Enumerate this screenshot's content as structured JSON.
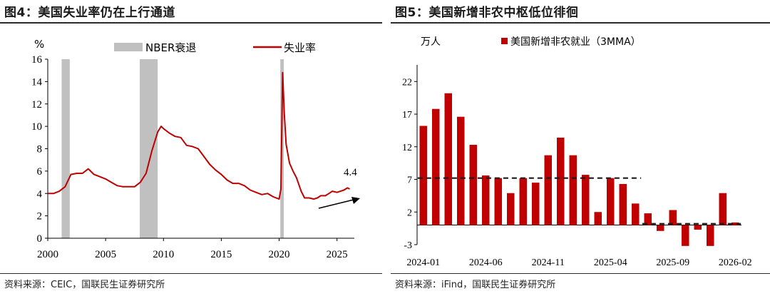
{
  "left": {
    "title": "图4：美国失业率仍在上行通道",
    "source": "资料来源：CEIC，国联民生证券研究所"
  },
  "right": {
    "title": "图5：美国新增非农中枢低位徘徊",
    "source": "资料来源：iFind，国联民生证券研究所"
  },
  "colors": {
    "series": "#c00000",
    "recession": "#c0c0c0",
    "axis": "#000000",
    "avgline": "#1a1a1a"
  },
  "chart_data": [
    {
      "type": "line",
      "ylabel": "%",
      "ylim": [
        0,
        16
      ],
      "yticks": [
        "0",
        "2",
        "4",
        "6",
        "8",
        "10",
        "12",
        "14",
        "16"
      ],
      "xlim": [
        2000,
        2026.5
      ],
      "xticks": [
        "2000",
        "2005",
        "2010",
        "2015",
        "2020",
        "2025"
      ],
      "legend": [
        "NBER衰退",
        "失业率"
      ],
      "legend_position": "top",
      "recessions": [
        [
          2001.2,
          2001.9
        ],
        [
          2007.95,
          2009.5
        ],
        [
          2020.1,
          2020.4
        ]
      ],
      "annotation": "4.4",
      "series": [
        {
          "name": "失业率",
          "points": [
            [
              2000.0,
              4.0
            ],
            [
              2000.5,
              4.0
            ],
            [
              2001.0,
              4.2
            ],
            [
              2001.5,
              4.6
            ],
            [
              2002.0,
              5.7
            ],
            [
              2002.5,
              5.8
            ],
            [
              2003.0,
              5.8
            ],
            [
              2003.5,
              6.2
            ],
            [
              2004.0,
              5.7
            ],
            [
              2004.5,
              5.5
            ],
            [
              2005.0,
              5.3
            ],
            [
              2005.5,
              5.0
            ],
            [
              2006.0,
              4.7
            ],
            [
              2006.5,
              4.6
            ],
            [
              2007.0,
              4.6
            ],
            [
              2007.5,
              4.6
            ],
            [
              2008.0,
              5.0
            ],
            [
              2008.5,
              5.8
            ],
            [
              2009.0,
              7.8
            ],
            [
              2009.5,
              9.5
            ],
            [
              2009.8,
              10.0
            ],
            [
              2010.0,
              9.8
            ],
            [
              2010.5,
              9.4
            ],
            [
              2011.0,
              9.1
            ],
            [
              2011.5,
              9.0
            ],
            [
              2012.0,
              8.3
            ],
            [
              2012.5,
              8.2
            ],
            [
              2013.0,
              8.0
            ],
            [
              2013.5,
              7.3
            ],
            [
              2014.0,
              6.6
            ],
            [
              2014.5,
              6.1
            ],
            [
              2015.0,
              5.7
            ],
            [
              2015.5,
              5.2
            ],
            [
              2016.0,
              4.9
            ],
            [
              2016.5,
              4.9
            ],
            [
              2017.0,
              4.7
            ],
            [
              2017.5,
              4.3
            ],
            [
              2018.0,
              4.1
            ],
            [
              2018.5,
              3.9
            ],
            [
              2019.0,
              4.0
            ],
            [
              2019.5,
              3.7
            ],
            [
              2020.0,
              3.5
            ],
            [
              2020.15,
              4.4
            ],
            [
              2020.3,
              14.8
            ],
            [
              2020.45,
              11.1
            ],
            [
              2020.6,
              8.4
            ],
            [
              2020.9,
              6.7
            ],
            [
              2021.2,
              6.0
            ],
            [
              2021.5,
              5.4
            ],
            [
              2021.9,
              4.2
            ],
            [
              2022.2,
              3.6
            ],
            [
              2022.6,
              3.6
            ],
            [
              2023.0,
              3.5
            ],
            [
              2023.3,
              3.6
            ],
            [
              2023.6,
              3.8
            ],
            [
              2024.0,
              3.8
            ],
            [
              2024.3,
              4.0
            ],
            [
              2024.6,
              4.2
            ],
            [
              2025.0,
              4.1
            ],
            [
              2025.3,
              4.2
            ],
            [
              2025.6,
              4.3
            ],
            [
              2025.9,
              4.5
            ],
            [
              2026.1,
              4.4
            ]
          ]
        }
      ]
    },
    {
      "type": "bar",
      "ylabel": "万人",
      "ylim": [
        -3,
        24
      ],
      "yticks": [
        "-3",
        "2",
        "7",
        "12",
        "17",
        "22"
      ],
      "categories": [
        "2024-01",
        "2024-02",
        "2024-03",
        "2024-04",
        "2024-05",
        "2024-06",
        "2024-07",
        "2024-08",
        "2024-09",
        "2024-10",
        "2024-11",
        "2024-12",
        "2025-01",
        "2025-02",
        "2025-03",
        "2025-04",
        "2025-05",
        "2025-06",
        "2025-07",
        "2025-08",
        "2025-09",
        "2025-10",
        "2025-11",
        "2025-12",
        "2026-01",
        "2026-02"
      ],
      "xticks": [
        "2024-01",
        "2024-06",
        "2024-11",
        "2025-04",
        "2025-09",
        "2026-02"
      ],
      "legend": [
        "美国新增非农就业（3MMA）"
      ],
      "legend_position": "top",
      "series": [
        {
          "name": "美国新增非农就业（3MMA）",
          "values": [
            15.2,
            17.8,
            20.2,
            16.6,
            12.3,
            7.6,
            7.2,
            4.9,
            7.2,
            6.5,
            10.7,
            13.4,
            10.7,
            7.7,
            2.0,
            7.2,
            6.3,
            3.3,
            1.8,
            -0.9,
            2.3,
            -3.2,
            -0.7,
            -3.2,
            4.9,
            0.4
          ]
        }
      ],
      "reference_lines": [
        {
          "value": 7.2,
          "from": "2024-01",
          "to": "2025-06"
        },
        {
          "value": 0.2,
          "from": "2025-07",
          "to": "2026-02"
        }
      ]
    }
  ]
}
